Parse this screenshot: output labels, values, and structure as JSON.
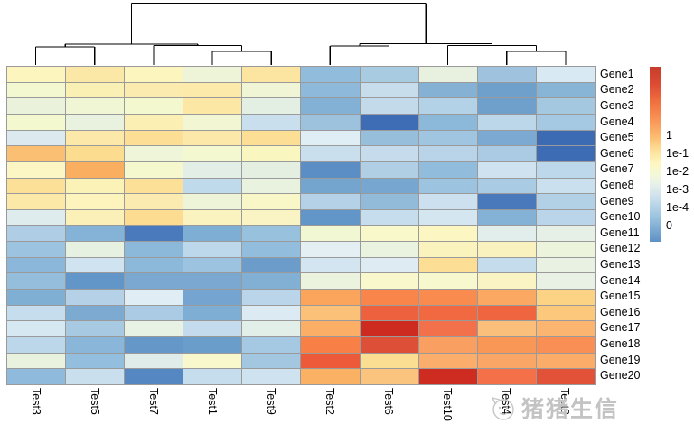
{
  "chart_data": {
    "type": "heatmap",
    "title": "",
    "columns": [
      "Test3",
      "Test5",
      "Test7",
      "Test1",
      "Test9",
      "Test2",
      "Test6",
      "Test10",
      "Test4",
      "Test8"
    ],
    "rows": [
      "Gene1",
      "Gene2",
      "Gene3",
      "Gene4",
      "Gene5",
      "Gene6",
      "Gene7",
      "Gene8",
      "Gene9",
      "Gene10",
      "Gene11",
      "Gene12",
      "Gene13",
      "Gene14",
      "Gene15",
      "Gene16",
      "Gene17",
      "Gene18",
      "Gene19",
      "Gene20"
    ],
    "cell_colors": [
      [
        "#FDF5BE",
        "#FCE8A6",
        "#FDF5BE",
        "#EEF4D8",
        "#FCE5A0",
        "#92BCDC",
        "#A9CBE2",
        "#E8F1E0",
        "#9FC3DE",
        "#D8E9F3"
      ],
      [
        "#F3F8D0",
        "#FBF0B4",
        "#FCEBAE",
        "#FCEAAA",
        "#F0F5D6",
        "#8FB9DB",
        "#C7DDEC",
        "#85B1D4",
        "#6F9FCB",
        "#88B4D6"
      ],
      [
        "#EAF2DC",
        "#F0F5D4",
        "#F4F8CE",
        "#FCE7A4",
        "#E4EFE4",
        "#83B1D6",
        "#C3DAEB",
        "#B4D2E7",
        "#6F9FCB",
        "#A5C8E1"
      ],
      [
        "#F4F8CE",
        "#E9F2DE",
        "#FBEFB4",
        "#F2F6D2",
        "#C9DFED",
        "#9CC2DE",
        "#3E6DB5",
        "#8CB8DA",
        "#BCD7EA",
        "#A5C9E2"
      ],
      [
        "#DCEAF0",
        "#FCE8A8",
        "#FCDF94",
        "#FCE8A8",
        "#FCDF94",
        "#DFEDF4",
        "#97BFDC",
        "#A0C5E0",
        "#7CA9D1",
        "#3C6BB4"
      ],
      [
        "#FBBF74",
        "#FCDD90",
        "#EFF5D8",
        "#F4F8D0",
        "#FAF6C0",
        "#C9DFEE",
        "#C6DCEC",
        "#B9D4E9",
        "#AACBE3",
        "#3D6CB4"
      ],
      [
        "#FBF6C4",
        "#F9AE60",
        "#F4F8CC",
        "#E3EEE6",
        "#E4EFE2",
        "#5B8EC4",
        "#B0CFE5",
        "#92BCDC",
        "#CFE2F0",
        "#BED8EB"
      ],
      [
        "#FCE098",
        "#FBF2B8",
        "#FCE098",
        "#BFDAEB",
        "#E9F2DE",
        "#74A5CE",
        "#77A7D0",
        "#9CC3DF",
        "#A9CBE3",
        "#CBE0EF"
      ],
      [
        "#FCE9A8",
        "#FCF4BC",
        "#FBEBB0",
        "#EDF4D8",
        "#F9F7C8",
        "#B4D1E7",
        "#92BBDA",
        "#CCE0EF",
        "#4A79BB",
        "#B2D0E6"
      ],
      [
        "#DFECEE",
        "#FBF0B8",
        "#FBDC90",
        "#FAF3C0",
        "#FAF3C4",
        "#6296C8",
        "#C6DDED",
        "#D4E7F1",
        "#84B2D6",
        "#BAD5E9"
      ],
      [
        "#AFCEE5",
        "#85B3D7",
        "#4A7ABC",
        "#7FAED4",
        "#98C1DE",
        "#F1F7D2",
        "#F9F8CA",
        "#FBF6C2",
        "#E1EEEC",
        "#E6F0E6"
      ],
      [
        "#9CC3DF",
        "#E7F1E2",
        "#8CB8DA",
        "#BED8EB",
        "#93BDDC",
        "#E3EFF3",
        "#EAF2E0",
        "#FBF3BE",
        "#FAF2BE",
        "#EDF4DC"
      ],
      [
        "#8BB7DA",
        "#CFE3F0",
        "#8CB8DA",
        "#9CC3DF",
        "#6B9CCA",
        "#D3E5F1",
        "#DEEBF2",
        "#FCDE94",
        "#C4DCEC",
        "#E9F2E2"
      ],
      [
        "#95BEDD",
        "#6296C8",
        "#7AA8D0",
        "#7AA8D0",
        "#82B0D5",
        "#EBF3DE",
        "#F8F8CC",
        "#F7F8CE",
        "#FAF3C4",
        "#E8F1E4"
      ],
      [
        "#80AFD4",
        "#B4D1E7",
        "#E0EDF4",
        "#74A4CF",
        "#BAD5E9",
        "#FBA55C",
        "#F9854A",
        "#F98B4E",
        "#FBA862",
        "#FCD384"
      ],
      [
        "#C6DDED",
        "#7CAAD1",
        "#AACBE3",
        "#7FAED4",
        "#DCEAF3",
        "#FCC178",
        "#EE613E",
        "#F06940",
        "#EF6540",
        "#FCC97C"
      ],
      [
        "#D6E8F2",
        "#A7CAE2",
        "#E7F1E4",
        "#C3DBEC",
        "#E2EEE8",
        "#FBAE66",
        "#CE2B20",
        "#F2714A",
        "#FBBF7C",
        "#FBB570"
      ],
      [
        "#BCD7EA",
        "#8AB6D9",
        "#6598C9",
        "#6B9DCB",
        "#A5C9E2",
        "#F88046",
        "#DD4F36",
        "#FA9F62",
        "#F99756",
        "#F98F54"
      ],
      [
        "#E9F2DE",
        "#94BEDD",
        "#DFECEA",
        "#F9F8CC",
        "#A3C7E1",
        "#EC5A3A",
        "#FCDE92",
        "#FBAE6C",
        "#FAA666",
        "#FBAC68"
      ],
      [
        "#90BADB",
        "#C9DFEE",
        "#5588C2",
        "#C6DDED",
        "#CEE2F0",
        "#FBB164",
        "#FBC47E",
        "#CE2C20",
        "#F37048",
        "#E25238"
      ]
    ],
    "legend": {
      "position": "right",
      "tick_labels": [
        "1",
        "1e-1",
        "1e-2",
        "1e-3",
        "1e-4",
        "0"
      ],
      "gradient_stops": [
        [
          0,
          "#C63C2B"
        ],
        [
          10,
          "#DD4B33"
        ],
        [
          20,
          "#F0703F"
        ],
        [
          30,
          "#F99355"
        ],
        [
          40,
          "#FBBC70"
        ],
        [
          48,
          "#FDE19A"
        ],
        [
          55,
          "#FEF6C0"
        ],
        [
          62,
          "#F3F8DA"
        ],
        [
          68,
          "#E4EFEA"
        ],
        [
          76,
          "#C6DDED"
        ],
        [
          86,
          "#9AC2DF"
        ],
        [
          100,
          "#5D91C5"
        ]
      ]
    },
    "column_dendrogram": [
      [
        [
          "Test3",
          "Test5"
        ],
        [
          "Test7",
          [
            "Test1",
            "Test9"
          ]
        ]
      ],
      [
        [
          "Test2",
          "Test6"
        ],
        [
          "Test10",
          [
            "Test4",
            "Test8"
          ]
        ]
      ]
    ],
    "grid_line_color": "#9a9a9a",
    "dendrogram_line_color": "#000000"
  },
  "dendrogram_segments": [
    [
      39.6,
      72,
      39.6,
      52
    ],
    [
      104.7,
      72,
      104.7,
      52
    ],
    [
      39.6,
      52,
      104.7,
      52
    ],
    [
      169.9,
      72,
      169.9,
      50.5
    ],
    [
      235.0,
      72,
      235.0,
      57
    ],
    [
      300.2,
      72,
      300.2,
      57
    ],
    [
      235.0,
      57,
      300.2,
      57
    ],
    [
      267.6,
      57,
      267.6,
      50.5
    ],
    [
      169.9,
      50.5,
      267.6,
      50.5
    ],
    [
      72.2,
      52,
      72.2,
      49
    ],
    [
      218.8,
      50.5,
      218.8,
      49
    ],
    [
      72.2,
      49,
      218.8,
      49
    ],
    [
      145.5,
      49,
      145.5,
      3.5
    ],
    [
      365.3,
      72,
      365.3,
      51
    ],
    [
      430.5,
      72,
      430.5,
      51
    ],
    [
      365.3,
      51,
      430.5,
      51
    ],
    [
      495.6,
      72,
      495.6,
      50.5
    ],
    [
      560.8,
      72,
      560.8,
      57
    ],
    [
      625.9,
      72,
      625.9,
      57
    ],
    [
      560.8,
      57,
      625.9,
      57
    ],
    [
      593.4,
      57,
      593.4,
      50.5
    ],
    [
      495.6,
      50.5,
      593.4,
      50.5
    ],
    [
      397.9,
      51,
      397.9,
      48.5
    ],
    [
      544.5,
      50.5,
      544.5,
      48.5
    ],
    [
      397.9,
      48.5,
      544.5,
      48.5
    ],
    [
      471.2,
      48.5,
      471.2,
      3.5
    ],
    [
      145.5,
      3.5,
      471.2,
      3.5
    ]
  ],
  "watermark": {
    "text": "猪猪生信",
    "logo": "pig-face-icon"
  }
}
